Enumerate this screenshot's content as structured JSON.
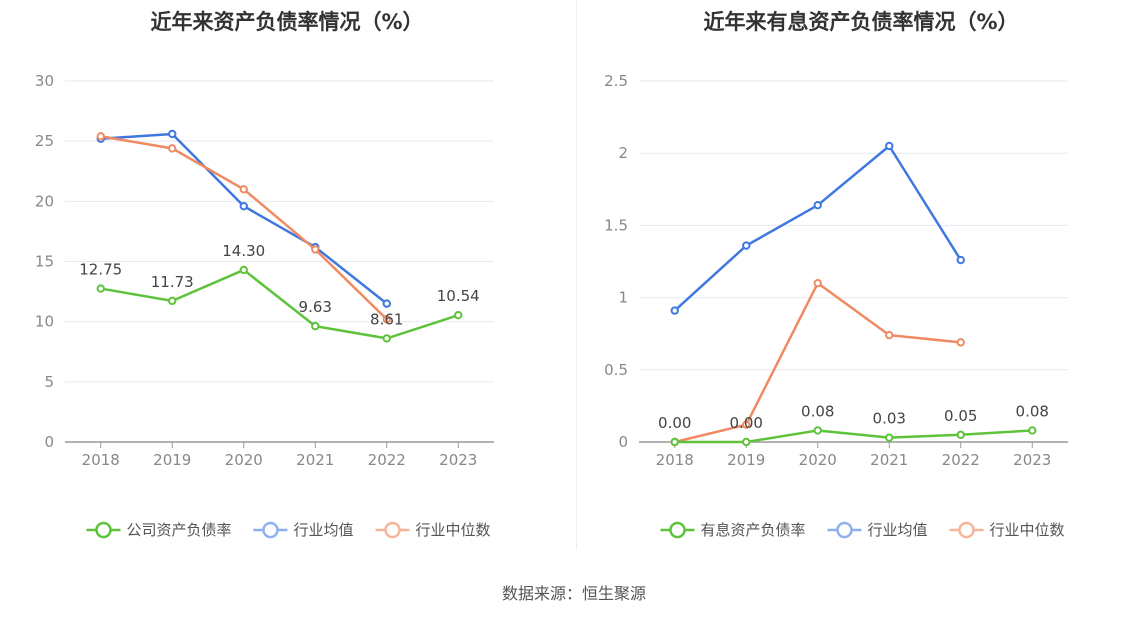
{
  "chart_data": [
    {
      "type": "line",
      "title": "近年来资产负债率情况（%）",
      "categories": [
        "2018",
        "2019",
        "2020",
        "2021",
        "2022",
        "2023"
      ],
      "ylim": [
        0,
        30
      ],
      "yticks": [
        0,
        5,
        10,
        15,
        20,
        25,
        30
      ],
      "grid": true,
      "legend_position": "bottom",
      "series": [
        {
          "name": "公司资产负债率",
          "color": "#5ec33b",
          "values": [
            12.75,
            11.73,
            14.3,
            9.63,
            8.61,
            10.54
          ],
          "labels": [
            "12.75",
            "11.73",
            "14.30",
            "9.63",
            "8.61",
            "10.54"
          ]
        },
        {
          "name": "行业均值",
          "color": "#3f78e0",
          "values": [
            25.2,
            25.6,
            19.6,
            16.2,
            11.5,
            null
          ]
        },
        {
          "name": "行业中位数",
          "color": "#f08a62",
          "values": [
            25.4,
            24.4,
            21.0,
            16.0,
            10.2,
            null
          ]
        }
      ]
    },
    {
      "type": "line",
      "title": "近年来有息资产负债率情况（%）",
      "categories": [
        "2018",
        "2019",
        "2020",
        "2021",
        "2022",
        "2023"
      ],
      "ylim": [
        0,
        2.5
      ],
      "yticks": [
        0,
        0.5,
        1,
        1.5,
        2,
        2.5
      ],
      "grid": true,
      "legend_position": "bottom",
      "series": [
        {
          "name": "有息资产负债率",
          "color": "#5ec33b",
          "values": [
            0.0,
            0.0,
            0.08,
            0.03,
            0.05,
            0.08
          ],
          "labels": [
            "0.00",
            "0.00",
            "0.08",
            "0.03",
            "0.05",
            "0.08"
          ]
        },
        {
          "name": "行业均值",
          "color": "#3f78e0",
          "values": [
            0.91,
            1.36,
            1.64,
            2.05,
            1.26,
            null
          ]
        },
        {
          "name": "行业中位数",
          "color": "#f08a62",
          "values": [
            0.0,
            0.12,
            1.1,
            0.74,
            0.69,
            null
          ]
        }
      ]
    }
  ],
  "footer": {
    "source": "数据来源：恒生聚源"
  }
}
